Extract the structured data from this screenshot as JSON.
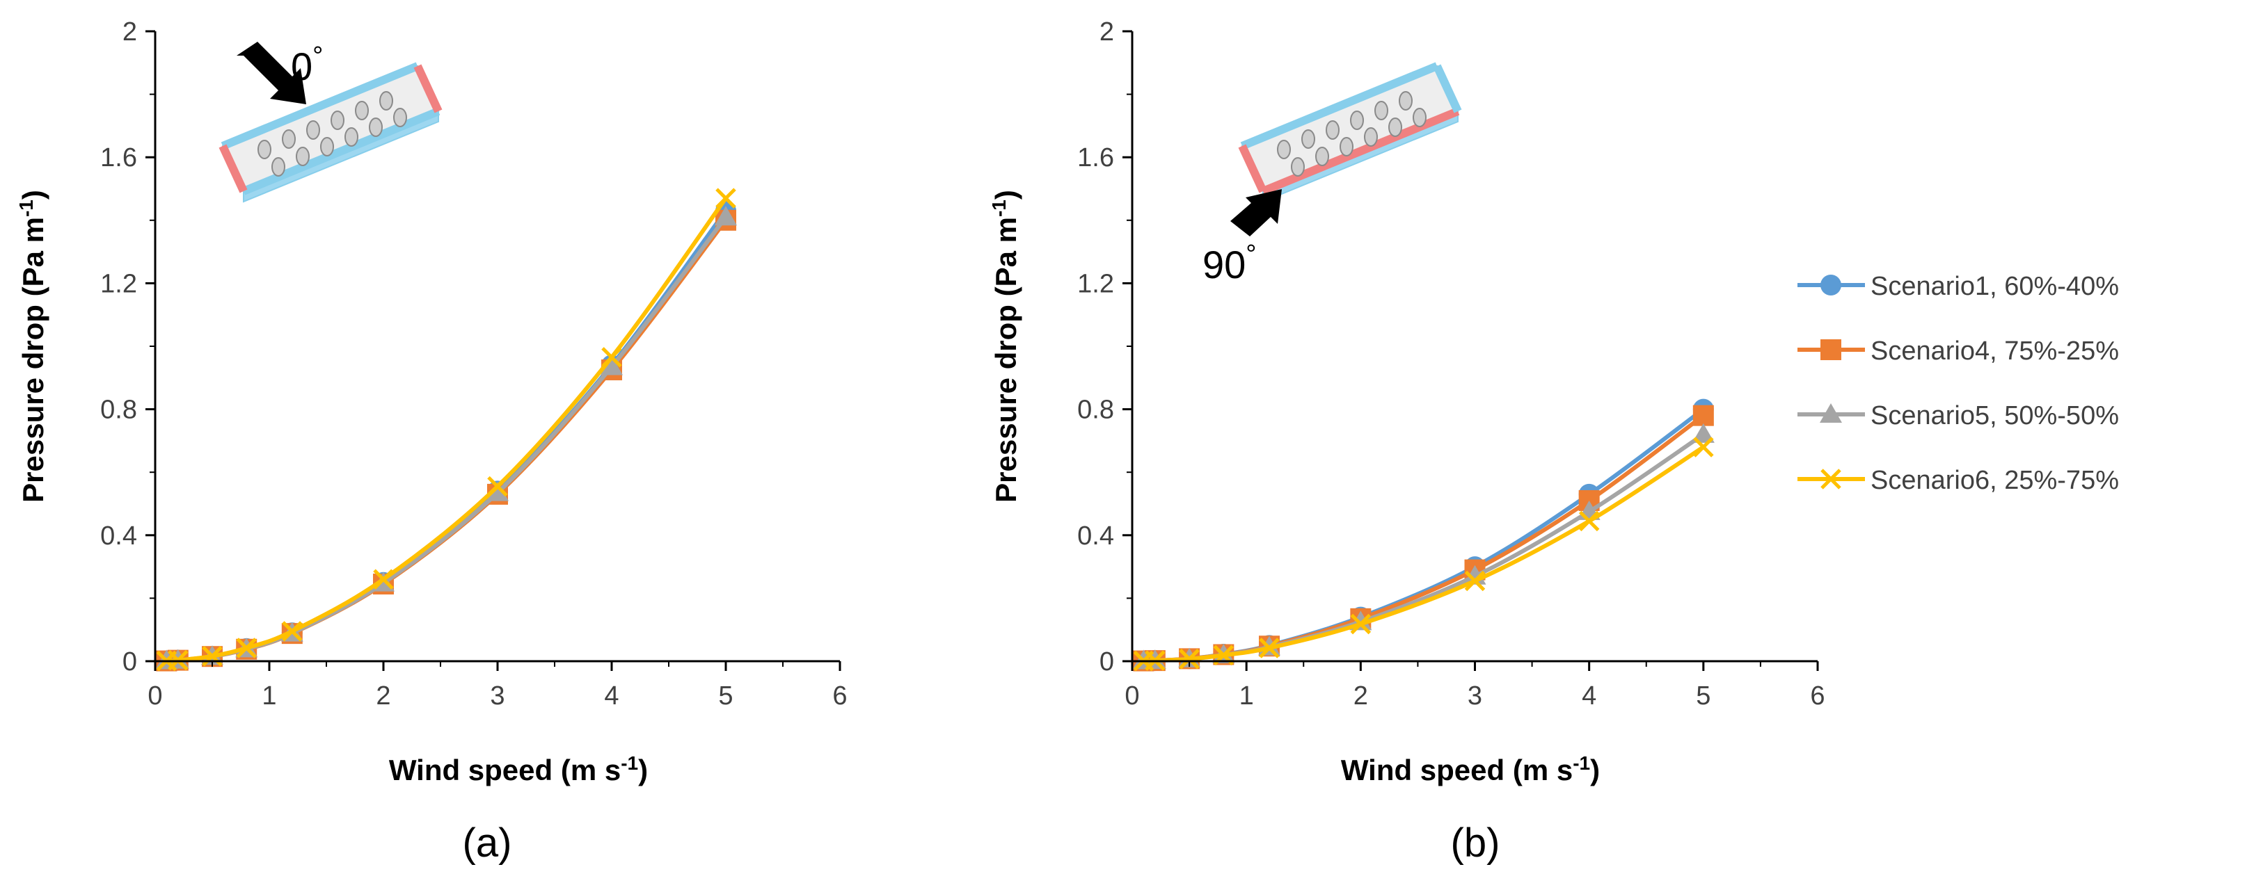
{
  "colors": {
    "scenario1": "#5B9BD5",
    "scenario4": "#ED7D31",
    "scenario5": "#A5A5A5",
    "scenario6": "#FFC000",
    "axis": "#000000",
    "duct_blue": "#87CEEB",
    "duct_red": "#F08080",
    "arrow": "#000000"
  },
  "legend": {
    "entries": [
      {
        "label": "Scenario1, 60%-40%",
        "marker": "circle",
        "color": "#5B9BD5"
      },
      {
        "label": "Scenario4, 75%-25%",
        "marker": "square",
        "color": "#ED7D31"
      },
      {
        "label": "Scenario5, 50%-50%",
        "marker": "triangle",
        "color": "#A5A5A5"
      },
      {
        "label": "Scenario6, 25%-75%",
        "marker": "x",
        "color": "#FFC000"
      }
    ]
  },
  "chart_data": [
    {
      "type": "line",
      "panel_label": "(a)",
      "inset_angle": "0",
      "inset_degree_symbol": "°",
      "xlabel": "Wind speed (m s",
      "xlabel_sup": "-1",
      "xlabel_end": ")",
      "ylabel": "Pressure drop (Pa m",
      "ylabel_sup": "-1",
      "ylabel_end": ")",
      "xlim": [
        0,
        6
      ],
      "ylim": [
        0,
        2
      ],
      "xticks": [
        "0",
        "1",
        "2",
        "3",
        "4",
        "5",
        "6"
      ],
      "yticks": [
        "0",
        "0.4",
        "0.8",
        "1.2",
        "1.6",
        "2"
      ],
      "x": [
        0.1,
        0.2,
        0.5,
        0.8,
        1.2,
        2,
        3,
        4,
        5
      ],
      "series": [
        {
          "name": "Scenario1, 60%-40%",
          "marker": "circle",
          "values": [
            0.001,
            0.003,
            0.015,
            0.04,
            0.09,
            0.25,
            0.54,
            0.94,
            1.43
          ]
        },
        {
          "name": "Scenario4, 75%-25%",
          "marker": "square",
          "values": [
            0.001,
            0.003,
            0.015,
            0.038,
            0.088,
            0.245,
            0.53,
            0.925,
            1.4
          ]
        },
        {
          "name": "Scenario5, 50%-50%",
          "marker": "triangle",
          "values": [
            0.001,
            0.003,
            0.015,
            0.039,
            0.089,
            0.248,
            0.535,
            0.935,
            1.41
          ]
        },
        {
          "name": "Scenario6, 25%-75%",
          "marker": "x",
          "values": [
            0.001,
            0.003,
            0.016,
            0.042,
            0.095,
            0.26,
            0.555,
            0.965,
            1.47
          ]
        }
      ]
    },
    {
      "type": "line",
      "panel_label": "(b)",
      "inset_angle": "90",
      "inset_degree_symbol": "°",
      "xlabel": "Wind speed (m s",
      "xlabel_sup": "-1",
      "xlabel_end": ")",
      "ylabel": "Pressure drop (Pa m",
      "ylabel_sup": "-1",
      "ylabel_end": ")",
      "xlim": [
        0,
        6
      ],
      "ylim": [
        0,
        2
      ],
      "xticks": [
        "0",
        "1",
        "2",
        "3",
        "4",
        "5",
        "6"
      ],
      "yticks": [
        "0",
        "0.4",
        "0.8",
        "1.2",
        "1.6",
        "2"
      ],
      "x": [
        0.1,
        0.2,
        0.5,
        0.8,
        1.2,
        2,
        3,
        4,
        5
      ],
      "series": [
        {
          "name": "Scenario1, 60%-40%",
          "marker": "circle",
          "values": [
            0.001,
            0.002,
            0.008,
            0.022,
            0.05,
            0.14,
            0.3,
            0.53,
            0.8
          ]
        },
        {
          "name": "Scenario4, 75%-25%",
          "marker": "square",
          "values": [
            0.001,
            0.002,
            0.008,
            0.021,
            0.048,
            0.135,
            0.29,
            0.51,
            0.78
          ]
        },
        {
          "name": "Scenario5, 50%-50%",
          "marker": "triangle",
          "values": [
            0.001,
            0.002,
            0.007,
            0.02,
            0.045,
            0.125,
            0.27,
            0.475,
            0.72
          ]
        },
        {
          "name": "Scenario6, 25%-75%",
          "marker": "x",
          "values": [
            0.001,
            0.002,
            0.007,
            0.019,
            0.042,
            0.118,
            0.255,
            0.445,
            0.68
          ]
        }
      ]
    }
  ]
}
